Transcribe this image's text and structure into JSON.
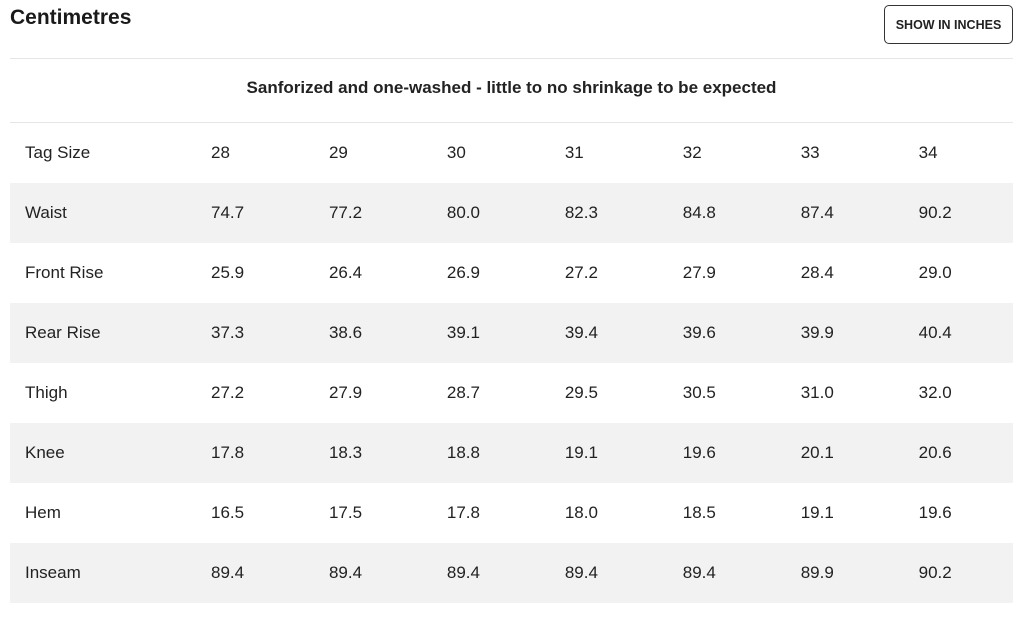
{
  "header": {
    "title": "Centimetres",
    "toggle_label": "SHOW IN INCHES"
  },
  "note": "Sanforized and one-washed - little to no shrinkage to be expected",
  "table": {
    "header_label": "Tag Size",
    "sizes": [
      "28",
      "29",
      "30",
      "31",
      "32",
      "33",
      "34"
    ],
    "rows": [
      {
        "label": "Waist",
        "values": [
          "74.7",
          "77.2",
          "80.0",
          "82.3",
          "84.8",
          "87.4",
          "90.2"
        ]
      },
      {
        "label": "Front Rise",
        "values": [
          "25.9",
          "26.4",
          "26.9",
          "27.2",
          "27.9",
          "28.4",
          "29.0"
        ]
      },
      {
        "label": "Rear Rise",
        "values": [
          "37.3",
          "38.6",
          "39.1",
          "39.4",
          "39.6",
          "39.9",
          "40.4"
        ]
      },
      {
        "label": "Thigh",
        "values": [
          "27.2",
          "27.9",
          "28.7",
          "29.5",
          "30.5",
          "31.0",
          "32.0"
        ]
      },
      {
        "label": "Knee",
        "values": [
          "17.8",
          "18.3",
          "18.8",
          "19.1",
          "19.6",
          "20.1",
          "20.6"
        ]
      },
      {
        "label": "Hem",
        "values": [
          "16.5",
          "17.5",
          "17.8",
          "18.0",
          "18.5",
          "19.1",
          "19.6"
        ]
      },
      {
        "label": "Inseam",
        "values": [
          "89.4",
          "89.4",
          "89.4",
          "89.4",
          "89.4",
          "89.9",
          "90.2"
        ]
      }
    ]
  }
}
